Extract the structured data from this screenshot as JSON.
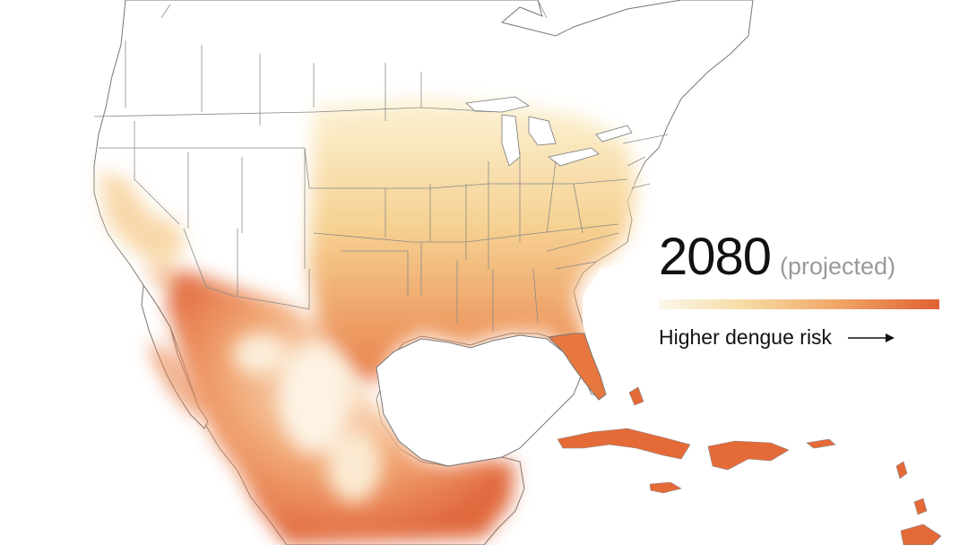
{
  "legend": {
    "year": "2080",
    "qualifier": "(projected)",
    "scale_low_color": "#fbf7ea",
    "scale_high_color": "#df6033",
    "direction_label": "Higher dengue risk",
    "direction_icon": "right-arrow-icon"
  },
  "map": {
    "region": "North America and Caribbean",
    "theme": "dengue risk",
    "base_fill": "#ffffff",
    "border_color": "#777777"
  }
}
